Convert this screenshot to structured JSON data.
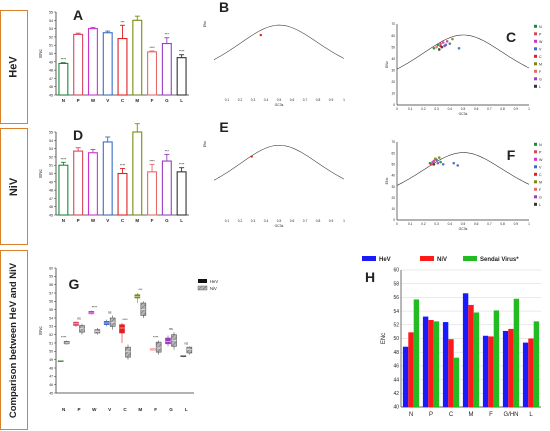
{
  "rows": [
    {
      "label": "HeV"
    },
    {
      "label": "NiV"
    },
    {
      "label": "Comparison between HeV and NiV"
    }
  ],
  "colors": {
    "N": "#1a8a3a",
    "P": "#d9455f",
    "W": "#cc33cc",
    "V": "#3b6cc4",
    "C": "#e02020",
    "M": "#7a8a10",
    "F": "#e66a6a",
    "G": "#9b3dbf",
    "L": "#333333",
    "HeV": "#1a1aff",
    "NiV": "#ff1a1a",
    "Sendai": "#22bb22"
  },
  "chart_data": [
    {
      "id": "A",
      "type": "bar",
      "panel_label": "A",
      "categories": [
        "N",
        "P",
        "W",
        "V",
        "C",
        "M",
        "F",
        "G",
        "L"
      ],
      "values": [
        48.8,
        52.3,
        53,
        52.5,
        51.8,
        54,
        50.2,
        51.2,
        49.5
      ],
      "errors": [
        0.1,
        0.15,
        0.15,
        0.2,
        1.6,
        0.5,
        0.1,
        0.7,
        0.35
      ],
      "sig": [
        "****",
        "",
        "",
        "",
        "***",
        "",
        "****",
        "***",
        "****"
      ],
      "ylabel": "ENc",
      "ylim": [
        45,
        55
      ],
      "yticks": [
        45,
        46,
        47,
        48,
        49,
        50,
        51,
        52,
        53,
        54,
        55
      ]
    },
    {
      "id": "D",
      "type": "bar",
      "panel_label": "D",
      "categories": [
        "N",
        "P",
        "W",
        "V",
        "C",
        "M",
        "F",
        "G",
        "L"
      ],
      "values": [
        51,
        52.7,
        52.5,
        53.8,
        50,
        55,
        50.2,
        51.5,
        50.2
      ],
      "errors": [
        0.35,
        0.4,
        0.4,
        0.6,
        0.6,
        1.0,
        0.9,
        0.8,
        0.5
      ],
      "sig": [
        "****",
        "",
        "",
        "",
        "****",
        "",
        "****",
        "***",
        "****"
      ],
      "ylabel": "ENc",
      "ylim": [
        45,
        55
      ],
      "yticks": [
        45,
        46,
        47,
        48,
        49,
        50,
        51,
        52,
        53,
        54,
        55
      ]
    },
    {
      "id": "B",
      "type": "line",
      "panel_label": "B",
      "xlabel": "GC3s",
      "ylabel": "ENc",
      "xlim": [
        0,
        1
      ],
      "ylim": [
        0,
        70
      ],
      "xticks": [
        "0.1",
        "0.2",
        "0.3",
        "0.4",
        "0.5",
        "0.6",
        "0.7",
        "0.8",
        "0.9",
        "1"
      ],
      "points": [
        {
          "x": 0.36,
          "y": 52,
          "k": "C"
        }
      ]
    },
    {
      "id": "E",
      "type": "line",
      "panel_label": "E",
      "xlabel": "GC3s",
      "ylabel": "ENc",
      "xlim": [
        0,
        1
      ],
      "ylim": [
        0,
        70
      ],
      "xticks": [
        "0.1",
        "0.2",
        "0.3",
        "0.4",
        "0.5",
        "0.6",
        "0.7",
        "0.8",
        "0.9",
        "1"
      ],
      "points": [
        {
          "x": 0.29,
          "y": 51,
          "k": "C"
        }
      ]
    },
    {
      "id": "C",
      "type": "scatter",
      "panel_label": "C",
      "xlabel": "GC3s",
      "ylabel": "ENc",
      "xlim": [
        0,
        1
      ],
      "ylim": [
        0,
        70
      ],
      "xticks": [
        "0",
        "0.1",
        "0.2",
        "0.3",
        "0.4",
        "0.5",
        "0.6",
        "0.7",
        "0.8",
        "0.9",
        "1"
      ],
      "yticks": [
        "0",
        "10",
        "20",
        "30",
        "40",
        "50",
        "60",
        "70"
      ],
      "legend": [
        "N",
        "P",
        "W",
        "V",
        "C",
        "M",
        "F",
        "G",
        "L"
      ],
      "points": [
        {
          "x": 0.28,
          "y": 49,
          "k": "N"
        },
        {
          "x": 0.33,
          "y": 53,
          "k": "P"
        },
        {
          "x": 0.35,
          "y": 54,
          "k": "W"
        },
        {
          "x": 0.37,
          "y": 52,
          "k": "V"
        },
        {
          "x": 0.33,
          "y": 51,
          "k": "C"
        },
        {
          "x": 0.42,
          "y": 57,
          "k": "M"
        },
        {
          "x": 0.3,
          "y": 50,
          "k": "F"
        },
        {
          "x": 0.36,
          "y": 51,
          "k": "G"
        },
        {
          "x": 0.34,
          "y": 50,
          "k": "L"
        },
        {
          "x": 0.31,
          "y": 52,
          "k": "N"
        },
        {
          "x": 0.38,
          "y": 55,
          "k": "P"
        },
        {
          "x": 0.4,
          "y": 53,
          "k": "V"
        },
        {
          "x": 0.47,
          "y": 49,
          "k": "V"
        },
        {
          "x": 0.32,
          "y": 48,
          "k": "L"
        }
      ]
    },
    {
      "id": "F",
      "type": "scatter",
      "panel_label": "F",
      "xlabel": "GC3s",
      "ylabel": "ENc",
      "xlim": [
        0,
        1
      ],
      "ylim": [
        0,
        70
      ],
      "xticks": [
        "0",
        "0.1",
        "0.2",
        "0.3",
        "0.4",
        "0.5",
        "0.6",
        "0.7",
        "0.8",
        "0.9",
        "1"
      ],
      "yticks": [
        "0",
        "10",
        "20",
        "30",
        "40",
        "50",
        "60",
        "70"
      ],
      "legend": [
        "N",
        "P",
        "W",
        "V",
        "C",
        "M",
        "F",
        "G",
        "L"
      ],
      "points": [
        {
          "x": 0.25,
          "y": 51,
          "k": "N"
        },
        {
          "x": 0.28,
          "y": 53,
          "k": "P"
        },
        {
          "x": 0.27,
          "y": 52,
          "k": "W"
        },
        {
          "x": 0.3,
          "y": 54,
          "k": "V"
        },
        {
          "x": 0.26,
          "y": 50,
          "k": "C"
        },
        {
          "x": 0.29,
          "y": 55,
          "k": "M"
        },
        {
          "x": 0.27,
          "y": 50,
          "k": "F"
        },
        {
          "x": 0.31,
          "y": 51,
          "k": "G"
        },
        {
          "x": 0.28,
          "y": 50,
          "k": "L"
        },
        {
          "x": 0.33,
          "y": 52,
          "k": "N"
        },
        {
          "x": 0.35,
          "y": 50,
          "k": "V"
        },
        {
          "x": 0.43,
          "y": 51,
          "k": "V"
        },
        {
          "x": 0.46,
          "y": 49,
          "k": "V"
        },
        {
          "x": 0.32,
          "y": 56,
          "k": "M"
        }
      ]
    },
    {
      "id": "G",
      "type": "box",
      "panel_label": "G",
      "categories": [
        "N",
        "P",
        "W",
        "V",
        "C",
        "M",
        "F",
        "G",
        "L"
      ],
      "ylabel": "ENc",
      "ylim": [
        45,
        60
      ],
      "yticks": [
        45,
        46,
        47,
        48,
        49,
        50,
        51,
        52,
        53,
        54,
        55,
        56,
        57,
        58,
        59,
        60
      ],
      "legend": [
        "HeV",
        "NiV"
      ],
      "series": [
        {
          "name": "HeV",
          "boxes": [
            {
              "min": 48.8,
              "q1": 48.8,
              "q3": 48.9,
              "max": 48.9,
              "med": 48.85
            },
            {
              "min": 52.9,
              "q1": 53.1,
              "q3": 53.5,
              "max": 53.6,
              "med": 53.3
            },
            {
              "min": 54.4,
              "q1": 54.5,
              "q3": 54.8,
              "max": 54.9,
              "med": 54.6
            },
            {
              "min": 53.0,
              "q1": 53.2,
              "q3": 53.6,
              "max": 53.8,
              "med": 53.4
            },
            {
              "min": 51.0,
              "q1": 52.2,
              "q3": 53.2,
              "max": 53.4,
              "med": 52.8
            },
            {
              "min": 55.8,
              "q1": 56.4,
              "q3": 56.8,
              "max": 57.0,
              "med": 56.6
            },
            {
              "min": 50.1,
              "q1": 50.2,
              "q3": 50.3,
              "max": 50.3,
              "med": 50.2
            },
            {
              "min": 50.6,
              "q1": 50.9,
              "q3": 51.6,
              "max": 51.9,
              "med": 51.2
            },
            {
              "min": 49.3,
              "q1": 49.4,
              "q3": 49.5,
              "max": 49.5,
              "med": 49.45
            }
          ]
        },
        {
          "name": "NiV",
          "boxes": [
            {
              "min": 50.8,
              "q1": 50.9,
              "q3": 51.2,
              "max": 51.3,
              "med": 51.0
            },
            {
              "min": 52.0,
              "q1": 52.3,
              "q3": 53.1,
              "max": 53.3,
              "med": 52.7
            },
            {
              "min": 52.0,
              "q1": 52.2,
              "q3": 52.6,
              "max": 52.8,
              "med": 52.4
            },
            {
              "min": 52.6,
              "q1": 53.0,
              "q3": 54.0,
              "max": 54.3,
              "med": 53.5
            },
            {
              "min": 49.0,
              "q1": 49.3,
              "q3": 50.5,
              "max": 50.8,
              "med": 50.0
            },
            {
              "min": 54.0,
              "q1": 54.3,
              "q3": 55.8,
              "max": 56.0,
              "med": 55.0
            },
            {
              "min": 49.6,
              "q1": 49.9,
              "q3": 51.1,
              "max": 51.3,
              "med": 50.4
            },
            {
              "min": 50.2,
              "q1": 50.6,
              "q3": 52.0,
              "max": 52.3,
              "med": 51.3
            },
            {
              "min": 49.6,
              "q1": 49.8,
              "q3": 50.5,
              "max": 50.6,
              "med": 50.2
            }
          ]
        }
      ],
      "sig": [
        "****",
        "ns",
        "****",
        "ns",
        "****",
        "***",
        "****",
        "ns",
        "ns"
      ]
    },
    {
      "id": "H",
      "type": "bar",
      "panel_label": "H",
      "categories": [
        "N",
        "P",
        "C",
        "M",
        "F",
        "G/HN",
        "L"
      ],
      "ylabel": "ENc",
      "ylim": [
        40,
        60
      ],
      "yticks": [
        40,
        42,
        44,
        46,
        48,
        50,
        52,
        54,
        56,
        58,
        60
      ],
      "legend": [
        "HeV",
        "NiV",
        "Sendai Virus*"
      ],
      "series": [
        {
          "name": "HeV",
          "values": [
            48.8,
            53.2,
            52.4,
            56.6,
            50.4,
            51.1,
            49.4
          ]
        },
        {
          "name": "NiV",
          "values": [
            50.9,
            52.7,
            49.9,
            54.9,
            50.3,
            51.4,
            50.0
          ]
        },
        {
          "name": "Sendai Virus*",
          "values": [
            55.7,
            52.5,
            47.2,
            53.8,
            54.1,
            55.8,
            52.5
          ]
        }
      ]
    }
  ]
}
